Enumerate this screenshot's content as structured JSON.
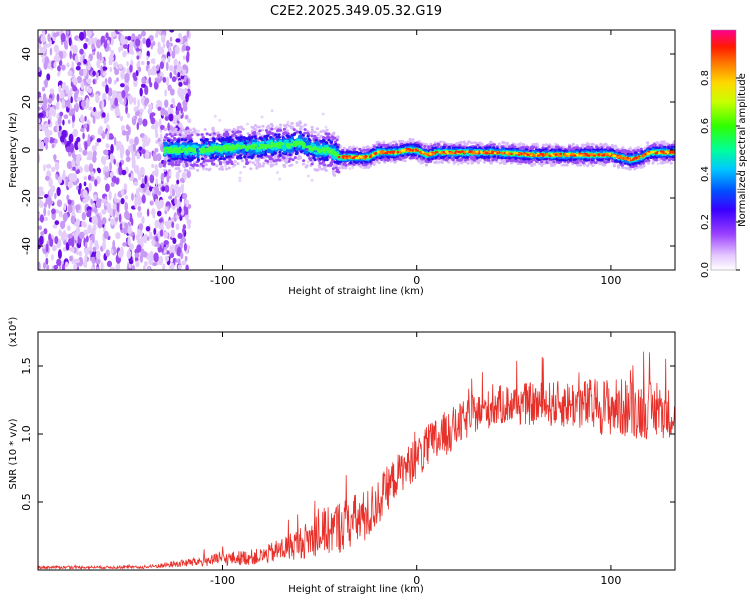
{
  "chart_data": [
    {
      "type": "heatmap",
      "title": "C2E2.2025.349.05.32.G19",
      "xlabel": "Height of straight line (km)",
      "ylabel": "Frequency (Hz)",
      "xlim": [
        -195,
        133
      ],
      "ylim": [
        -50,
        50
      ],
      "xticks": [
        -100,
        0,
        100
      ],
      "yticks": [
        -40,
        -20,
        0,
        20,
        40
      ],
      "colorbar": {
        "label": "Normalized spectral amplitude",
        "range": [
          0,
          1
        ],
        "ticks": [
          "0.0",
          "0.2",
          "0.4",
          "0.6",
          "0.8"
        ]
      },
      "ridge": {
        "description": "Dominant frequency vs height",
        "points": [
          [
            -125,
            0
          ],
          [
            -110,
            0
          ],
          [
            -95,
            1
          ],
          [
            -85,
            1
          ],
          [
            -75,
            2
          ],
          [
            -65,
            2
          ],
          [
            -60,
            3
          ],
          [
            -55,
            1
          ],
          [
            -50,
            0
          ],
          [
            -45,
            0
          ],
          [
            -40,
            -3
          ],
          [
            -35,
            -3
          ],
          [
            -25,
            -3
          ],
          [
            -20,
            -1
          ],
          [
            -10,
            -1
          ],
          [
            -5,
            0
          ],
          [
            0,
            0
          ],
          [
            5,
            -2
          ],
          [
            10,
            -1
          ],
          [
            20,
            -1
          ],
          [
            40,
            -1
          ],
          [
            60,
            -2
          ],
          [
            80,
            -2
          ],
          [
            90,
            -2
          ],
          [
            100,
            -2
          ],
          [
            110,
            -4
          ],
          [
            115,
            -3
          ],
          [
            120,
            -1
          ],
          [
            133,
            -1
          ]
        ]
      },
      "noise_region": {
        "x_from": -195,
        "x_to": -125,
        "note": "broadband scatter across all frequencies"
      }
    },
    {
      "type": "line",
      "xlabel": "Height of straight line (km)",
      "ylabel": "SNR (10 * v/v)",
      "y_scale_label": "(x10⁴)",
      "xlim": [
        -195,
        133
      ],
      "ylim": [
        0,
        1.75
      ],
      "xticks": [
        -100,
        0,
        100
      ],
      "yticks": [
        0.5,
        1.0,
        1.5
      ],
      "series": [
        {
          "name": "SNR",
          "color": "#e8302a",
          "envelope": {
            "x": [
              -195,
              -140,
              -120,
              -100,
              -80,
              -60,
              -40,
              -25,
              -10,
              0,
              10,
              20,
              30,
              45,
              60,
              80,
              100,
              115,
              133
            ],
            "mean": [
              0.02,
              0.02,
              0.05,
              0.08,
              0.1,
              0.2,
              0.32,
              0.4,
              0.7,
              0.82,
              0.95,
              1.05,
              1.15,
              1.22,
              1.22,
              1.22,
              1.2,
              1.18,
              1.15
            ],
            "spread": [
              0.01,
              0.01,
              0.03,
              0.05,
              0.06,
              0.12,
              0.2,
              0.2,
              0.15,
              0.15,
              0.18,
              0.16,
              0.14,
              0.15,
              0.16,
              0.18,
              0.22,
              0.22,
              0.18
            ]
          }
        }
      ]
    }
  ]
}
